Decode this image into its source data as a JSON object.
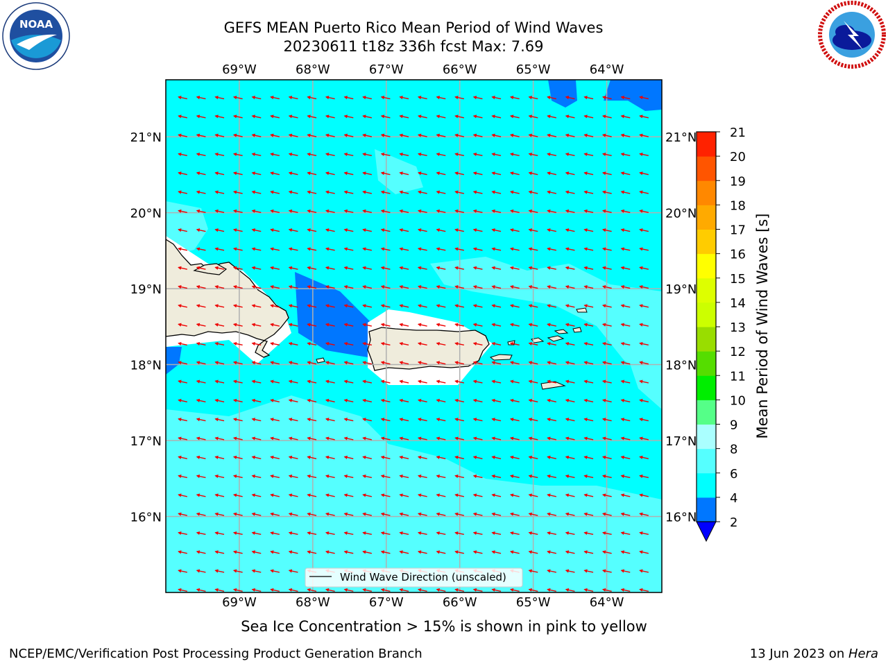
{
  "header": {
    "title_line1": "GEFS MEAN Puerto Rico Mean Period of Wind Waves",
    "title_line2": "20230611 t18z 336h fcst   Max: 7.69"
  },
  "logos": {
    "left": {
      "name": "noaa-logo",
      "text": "NOAA",
      "ring_text": "NATIONAL OCEANIC AND ATMOSPHERIC ADMINISTRATION · U.S. DEPARTMENT OF COMMERCE"
    },
    "right": {
      "name": "nws-logo",
      "ring_text": "NATIONAL WEATHER SERVICE"
    }
  },
  "map": {
    "lon_labels": [
      "69°W",
      "68°W",
      "67°W",
      "66°W",
      "65°W",
      "64°W"
    ],
    "lon_values": [
      -69,
      -68,
      -67,
      -66,
      -65,
      -64
    ],
    "lat_labels": [
      "16°N",
      "17°N",
      "18°N",
      "19°N",
      "20°N",
      "21°N"
    ],
    "lat_values": [
      16,
      17,
      18,
      19,
      20,
      21
    ],
    "extent": {
      "lon_min": -70.0,
      "lon_max": -63.25,
      "lat_min": 15.0,
      "lat_max": 21.75
    },
    "legend_label": "Wind Wave Direction (unscaled)",
    "arrow_color": "#ee0000",
    "land_color": "#efecdc",
    "grid_color": "#b0b0b0",
    "coastline_color": "#000000"
  },
  "colorbar": {
    "label": "Mean Period of Wind Waves [s]",
    "ticks": [
      "2",
      "4",
      "6",
      "8",
      "9",
      "10",
      "11",
      "12",
      "13",
      "14",
      "15",
      "16",
      "17",
      "18",
      "19",
      "20",
      "21"
    ],
    "colors": [
      "#0077ff",
      "#00ffff",
      "#55ffff",
      "#aaffff",
      "#55ff88",
      "#00ee00",
      "#55dd00",
      "#99dd00",
      "#ccff00",
      "#ddff00",
      "#ffff00",
      "#ffcc00",
      "#ffaa00",
      "#ff8800",
      "#ff5500",
      "#ff2200",
      "#ff0000"
    ],
    "under_color": "#0000ff"
  },
  "footer": {
    "ice_note": "Sea Ice Concentration > 15% is shown in pink to yellow",
    "branch": "NCEP/EMC/Verification Post Processing Product Generation Branch",
    "date_prefix": "13 Jun 2023 on ",
    "host": "Hera"
  }
}
